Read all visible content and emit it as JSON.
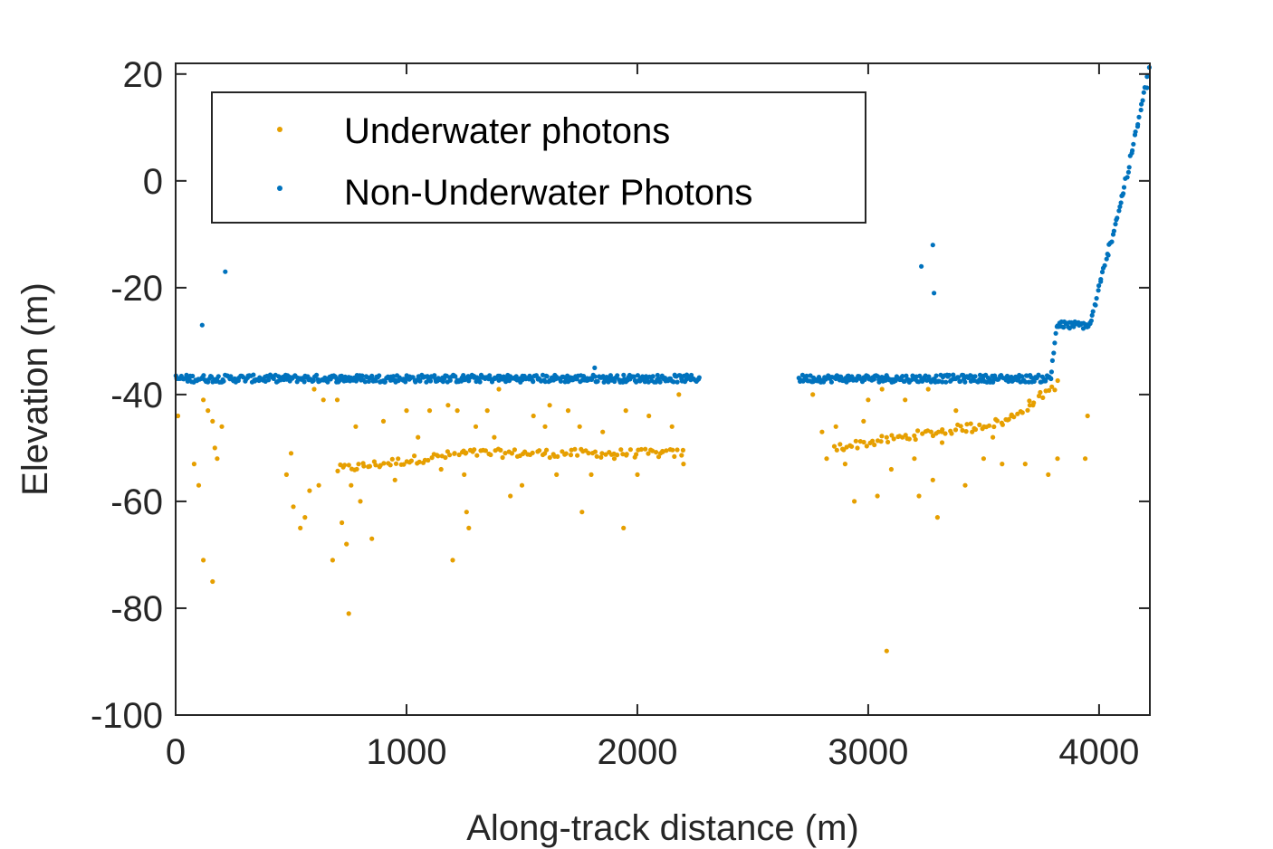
{
  "chart_data": {
    "type": "scatter",
    "xlabel": "Along-track distance (m)",
    "ylabel": "Elevation (m)",
    "xlim": [
      0,
      4220
    ],
    "ylim": [
      -100,
      22
    ],
    "xticks": [
      0,
      1000,
      2000,
      3000,
      4000
    ],
    "yticks": [
      20,
      0,
      -20,
      -40,
      -60,
      -80,
      -100
    ],
    "grid": false,
    "legend_position": "top-left",
    "series": [
      {
        "name": "Underwater photons",
        "color": "#EDB120",
        "marker_color": "#E69F00",
        "description_segments": [
          {
            "x_start": 700,
            "x_end": 1250,
            "y_start": -54,
            "y_end": -51
          },
          {
            "x_start": 1250,
            "x_end": 2200,
            "y_start": -51,
            "y_end": -51
          },
          {
            "x_start": 2850,
            "x_end": 3600,
            "y_start": -50,
            "y_end": -45
          },
          {
            "x_start": 3600,
            "x_end": 3820,
            "y_start": -45,
            "y_end": -38
          }
        ],
        "outliers": [
          [
            10,
            -44
          ],
          [
            80,
            -53
          ],
          [
            100,
            -57
          ],
          [
            120,
            -41
          ],
          [
            140,
            -43
          ],
          [
            160,
            -45
          ],
          [
            170,
            -50
          ],
          [
            180,
            -52
          ],
          [
            120,
            -71
          ],
          [
            160,
            -75
          ],
          [
            200,
            -46
          ],
          [
            480,
            -55
          ],
          [
            500,
            -51
          ],
          [
            510,
            -61
          ],
          [
            540,
            -65
          ],
          [
            560,
            -63
          ],
          [
            580,
            -58
          ],
          [
            600,
            -39
          ],
          [
            620,
            -57
          ],
          [
            640,
            -41
          ],
          [
            680,
            -71
          ],
          [
            700,
            -41
          ],
          [
            720,
            -64
          ],
          [
            740,
            -68
          ],
          [
            750,
            -81
          ],
          [
            760,
            -57
          ],
          [
            780,
            -46
          ],
          [
            800,
            -60
          ],
          [
            850,
            -67
          ],
          [
            900,
            -45
          ],
          [
            950,
            -56
          ],
          [
            1000,
            -43
          ],
          [
            1050,
            -48
          ],
          [
            1100,
            -43
          ],
          [
            1150,
            -54
          ],
          [
            1180,
            -42
          ],
          [
            1200,
            -71
          ],
          [
            1220,
            -43
          ],
          [
            1250,
            -55
          ],
          [
            1260,
            -62
          ],
          [
            1270,
            -65
          ],
          [
            1300,
            -46
          ],
          [
            1350,
            -43
          ],
          [
            1380,
            -48
          ],
          [
            1400,
            -39
          ],
          [
            1450,
            -59
          ],
          [
            1500,
            -57
          ],
          [
            1550,
            -44
          ],
          [
            1600,
            -46
          ],
          [
            1620,
            -42
          ],
          [
            1650,
            -55
          ],
          [
            1700,
            -43
          ],
          [
            1750,
            -46
          ],
          [
            1760,
            -62
          ],
          [
            1800,
            -55
          ],
          [
            1850,
            -47
          ],
          [
            1900,
            -52
          ],
          [
            1940,
            -65
          ],
          [
            1950,
            -43
          ],
          [
            2000,
            -55
          ],
          [
            2050,
            -44
          ],
          [
            2100,
            -51
          ],
          [
            2150,
            -46
          ],
          [
            2180,
            -40
          ],
          [
            2200,
            -53
          ],
          [
            2760,
            -40
          ],
          [
            2800,
            -47
          ],
          [
            2820,
            -52
          ],
          [
            2860,
            -46
          ],
          [
            2900,
            -53
          ],
          [
            2940,
            -60
          ],
          [
            2980,
            -45
          ],
          [
            3000,
            -41
          ],
          [
            3040,
            -59
          ],
          [
            3060,
            -39
          ],
          [
            3080,
            -88
          ],
          [
            3100,
            -54
          ],
          [
            3160,
            -41
          ],
          [
            3200,
            -52
          ],
          [
            3220,
            -59
          ],
          [
            3260,
            -39
          ],
          [
            3280,
            -56
          ],
          [
            3300,
            -63
          ],
          [
            3320,
            -49
          ],
          [
            3380,
            -43
          ],
          [
            3420,
            -57
          ],
          [
            3450,
            -47
          ],
          [
            3500,
            -52
          ],
          [
            3540,
            -48
          ],
          [
            3580,
            -53
          ],
          [
            3620,
            -44
          ],
          [
            3680,
            -53
          ],
          [
            3700,
            -42
          ],
          [
            3780,
            -55
          ],
          [
            3820,
            -52
          ],
          [
            3950,
            -44
          ],
          [
            3940,
            -52
          ]
        ]
      },
      {
        "name": "Non-Underwater Photons",
        "color": "#0072BD",
        "description_segments": [
          {
            "x_start": 0,
            "x_end": 2270,
            "y_start": -37,
            "y_end": -37
          },
          {
            "x_start": 2700,
            "x_end": 3790,
            "y_start": -37,
            "y_end": -37
          },
          {
            "x_start": 3790,
            "x_end": 3820,
            "y_start": -37,
            "y_end": -27
          },
          {
            "x_start": 3820,
            "x_end": 3960,
            "y_start": -27,
            "y_end": -27
          },
          {
            "x_start": 3960,
            "x_end": 4100,
            "y_start": -27,
            "y_end": -3
          },
          {
            "x_start": 4100,
            "x_end": 4220,
            "y_start": -3,
            "y_end": 21
          }
        ],
        "outliers": [
          [
            115,
            -27
          ],
          [
            215,
            -17
          ],
          [
            3230,
            -16
          ],
          [
            3280,
            -12
          ],
          [
            3285,
            -21
          ],
          [
            1815,
            -35
          ]
        ]
      }
    ]
  }
}
